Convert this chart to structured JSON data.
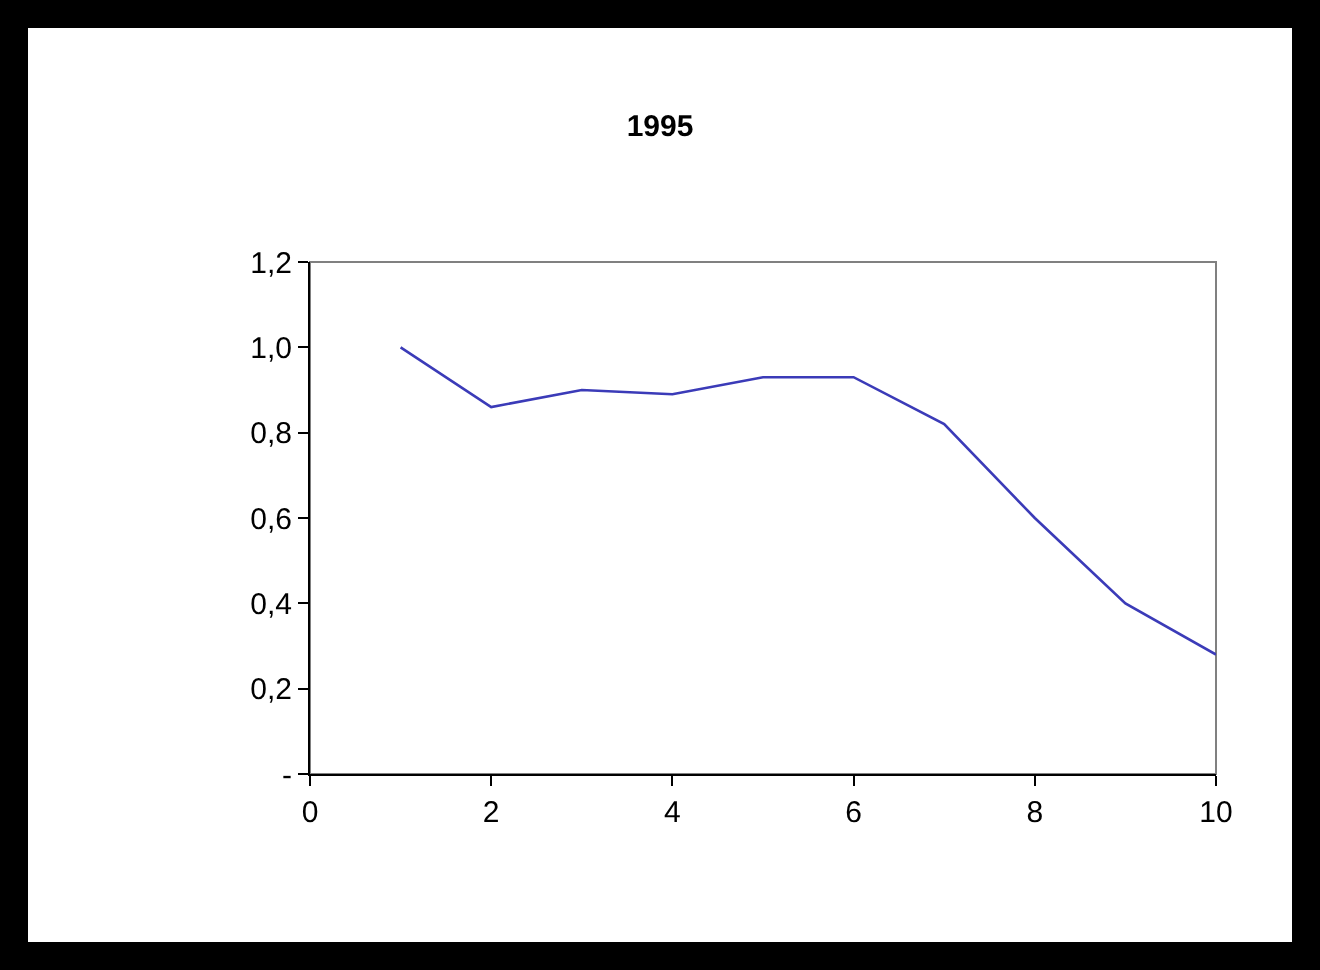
{
  "chart_data": {
    "type": "line",
    "title": "1995",
    "x": [
      1,
      2,
      3,
      4,
      5,
      6,
      7,
      8,
      9,
      10
    ],
    "series": [
      {
        "color": "#3b3bb8",
        "values": [
          1.0,
          0.86,
          0.9,
          0.89,
          0.93,
          0.93,
          0.82,
          0.6,
          0.4,
          0.28
        ]
      }
    ],
    "xlim": [
      0,
      10
    ],
    "xticks": [
      0,
      2,
      4,
      6,
      8,
      10
    ],
    "ylim": [
      0,
      1.2
    ],
    "yticks": [
      {
        "value": 0,
        "label": "-"
      },
      {
        "value": 0.2,
        "label": "0,2"
      },
      {
        "value": 0.4,
        "label": "0,4"
      },
      {
        "value": 0.6,
        "label": "0,6"
      },
      {
        "value": 0.8,
        "label": "0,8"
      },
      {
        "value": 1,
        "label": "1,0"
      },
      {
        "value": 1.2,
        "label": "1,2"
      }
    ],
    "grid": false,
    "marker": "none",
    "line_style": "solid"
  }
}
